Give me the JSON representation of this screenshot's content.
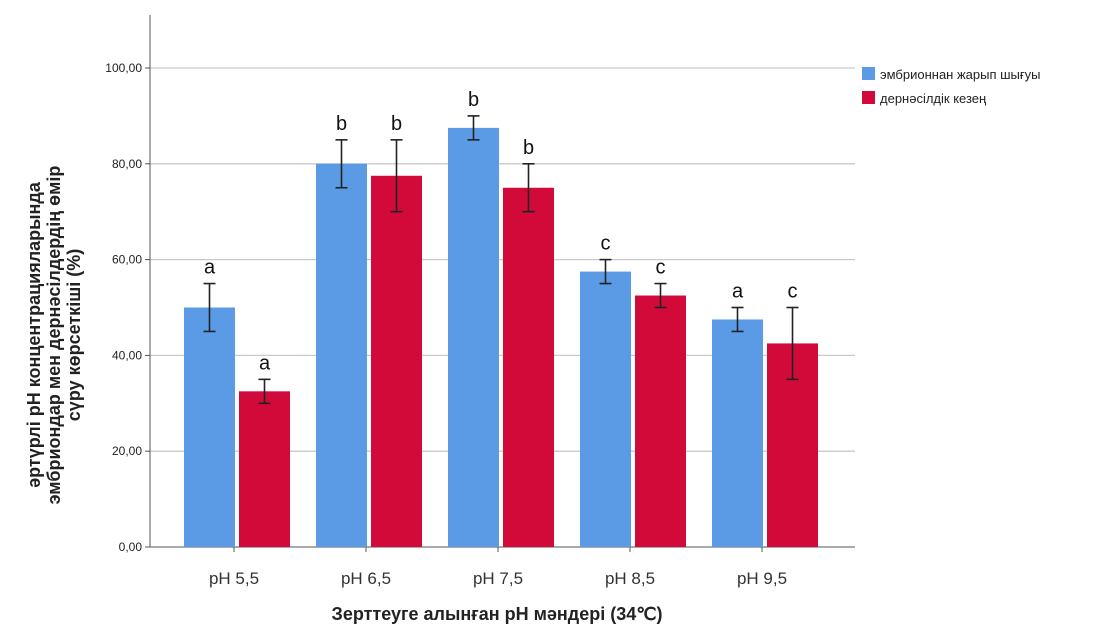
{
  "chart_data": {
    "type": "bar",
    "categories": [
      "pH 5,5",
      "pH 6,5",
      "pH 7,5",
      "pH 8,5",
      "pH 9,5"
    ],
    "series": [
      {
        "name": "эмбрионнан жарып шығуы",
        "color": "#5B9BE6",
        "values": [
          50,
          80,
          87.5,
          57.5,
          47.5
        ],
        "error": [
          5,
          5,
          2.5,
          2.5,
          2.5
        ],
        "labels": [
          "a",
          "b",
          "b",
          "c",
          "a"
        ]
      },
      {
        "name": "дернәсілдік кезең",
        "color": "#D10A3A",
        "values": [
          32.5,
          77.5,
          75,
          52.5,
          42.5
        ],
        "error": [
          2.5,
          7.5,
          5,
          2.5,
          7.5
        ],
        "labels": [
          "a",
          "b",
          "b",
          "c",
          "c"
        ]
      }
    ],
    "ylim": [
      0,
      110
    ],
    "yticks": [
      "0,00",
      "20,00",
      "40,00",
      "60,00",
      "80,00",
      "100,00"
    ],
    "ytick_values": [
      0,
      20,
      40,
      60,
      80,
      100
    ],
    "xlabel": "Зерттеуге алынған pH мәндері (34℃)",
    "ylabel_lines": [
      "әртүрлі pH концентрацияларында",
      "эмбриондар мен дернәсілдердің өмір",
      "сүру көрсеткіші (%)"
    ],
    "grid": true,
    "legend": "top-right"
  }
}
